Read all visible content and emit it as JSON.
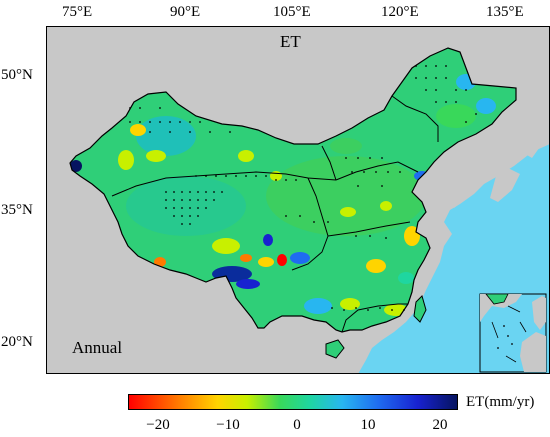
{
  "map": {
    "title": "ET",
    "season_label": "Annual",
    "longitude_ticks": [
      "75°E",
      "90°E",
      "105°E",
      "120°E",
      "135°E"
    ],
    "latitude_ticks": [
      "50°N",
      "35°N",
      "20°N"
    ],
    "colors": {
      "ocean": "#6ad4f2",
      "land_outside": "#c8c8c8",
      "field_base": "#2fcf78"
    }
  },
  "colorbar": {
    "label": "ET(mm/yr)",
    "ticks": [
      "−20",
      "−10",
      "0",
      "10",
      "20"
    ],
    "range": [
      -23,
      23
    ],
    "colors": [
      "#ff0000",
      "#ff7a00",
      "#ffd400",
      "#c8f000",
      "#39d85a",
      "#1fd6a0",
      "#28b6f0",
      "#1f6cf0",
      "#1822d0",
      "#061460"
    ]
  }
}
